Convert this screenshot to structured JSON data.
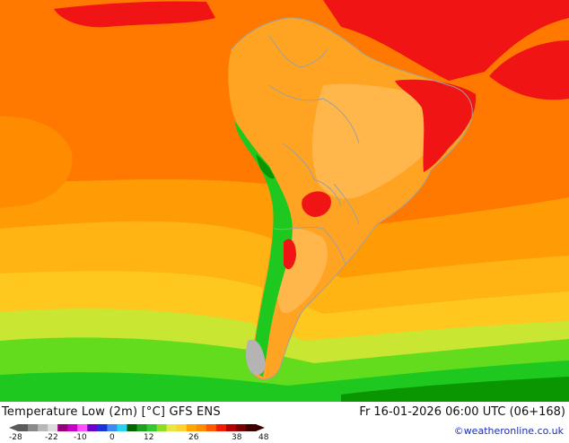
{
  "header": {
    "title": "Temperature Low (2m) [°C] GFS ENS",
    "valid_time": "Fr 16-01-2026 06:00 UTC (06+168)",
    "credit": "©weatheronline.co.uk"
  },
  "legend": {
    "ticks": [
      "-28",
      "-22",
      "-10",
      "0",
      "12",
      "26",
      "38",
      "48"
    ],
    "colors": [
      "#5a5a5a",
      "#8a8a8a",
      "#b8b8b8",
      "#dddddd",
      "#9a007a",
      "#c800c8",
      "#ff50ff",
      "#6e00c8",
      "#1e32dc",
      "#3c8cf0",
      "#28d2f0",
      "#006400",
      "#1ea01e",
      "#32c832",
      "#8cdc28",
      "#e6e646",
      "#ffd22d",
      "#ffa500",
      "#ff8c00",
      "#ff5a00",
      "#f01e00",
      "#b40000",
      "#780000",
      "#3c0000"
    ]
  },
  "map_colors": {
    "ocean_hot": "#ff7800",
    "ocean_warm": "#ff9b05",
    "ocean_mild": "#ffb414",
    "ocean_cool": "#ffc81e",
    "green_light": "#64dc1e",
    "green": "#1ec81e",
    "green_dark": "#0a9600",
    "red": "#f01414",
    "land": "#ffa323",
    "land_inner": "#ffb64b",
    "border": "#a0a0a0"
  }
}
